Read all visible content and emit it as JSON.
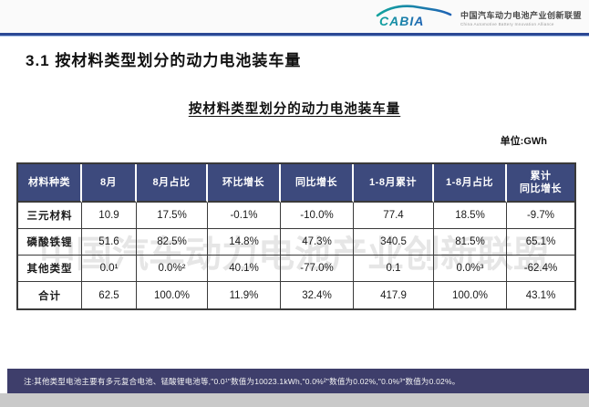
{
  "header": {
    "logo_text": "CABIA",
    "org_name_cn": "中国汽车动力电池产业创新联盟",
    "org_name_en": "China Automotive Battery Innovation Alliance"
  },
  "page": {
    "section_title": "3.1 按材料类型划分的动力电池装车量",
    "chart_title": "按材料类型划分的动力电池装车量",
    "unit_label": "单位:GWh"
  },
  "watermark_text": "中国汽车动力电池产业创新联盟",
  "footnote": "注:其他类型电池主要有多元复合电池、锰酸锂电池等,\"0.0¹\"数值为10023.1kWh,\"0.0%²\"数值为0.02%,\"0.0%³\"数值为0.02%。",
  "chart_data": {
    "type": "table",
    "title": "按材料类型划分的动力电池装车量",
    "unit": "GWh",
    "columns": [
      "材料种类",
      "8月",
      "8月占比",
      "环比增长",
      "同比增长",
      "1-8月累计",
      "1-8月占比",
      "累计\n同比增长"
    ],
    "rows": [
      [
        "三元材料",
        "10.9",
        "17.5%",
        "-0.1%",
        "-10.0%",
        "77.4",
        "18.5%",
        "-9.7%"
      ],
      [
        "磷酸铁锂",
        "51.6",
        "82.5%",
        "14.8%",
        "47.3%",
        "340.5",
        "81.5%",
        "65.1%"
      ],
      [
        "其他类型",
        "0.0¹",
        "0.0%²",
        "40.1%",
        "-77.0%",
        "0.1",
        "0.0%³",
        "-62.4%"
      ],
      [
        "合计",
        "62.5",
        "100.0%",
        "11.9%",
        "32.4%",
        "417.9",
        "100.0%",
        "43.1%"
      ]
    ]
  },
  "colors": {
    "table_header_bg": "#3d4a7d",
    "accent_line": "#2c4894",
    "footer_bg": "#3e3e6b",
    "logo_teal": "#12a39e",
    "logo_blue": "#2063b4"
  }
}
